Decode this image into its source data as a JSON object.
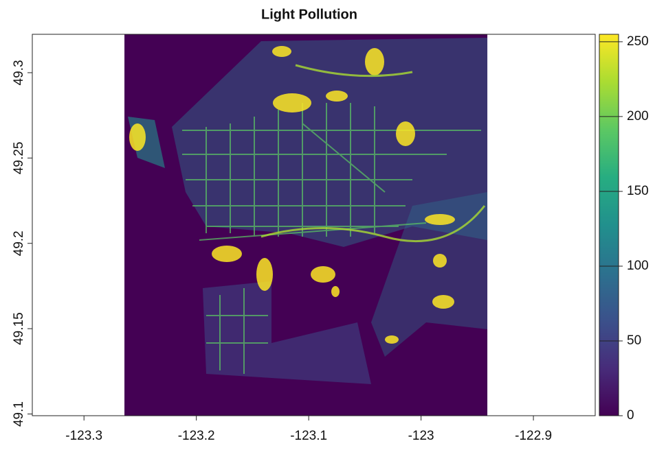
{
  "chart_data": {
    "type": "raster",
    "title": "Light Pollution",
    "xlim": [
      -123.346,
      -122.845
    ],
    "ylim": [
      49.099,
      49.3225
    ],
    "xticks": [
      -123.3,
      -123.2,
      -123.1,
      -123,
      -122.9
    ],
    "yticks": [
      49.1,
      49.15,
      49.2,
      49.25,
      49.3
    ],
    "raster_x": [
      -123.264,
      -122.941
    ],
    "zlim": [
      0,
      255
    ],
    "zticks": [
      0,
      50,
      100,
      150,
      200,
      250
    ],
    "colormap": [
      "#440154",
      "#472c7a",
      "#3b518b",
      "#2c718e",
      "#21908d",
      "#27ad81",
      "#5cc863",
      "#aadc32",
      "#fde725"
    ]
  }
}
